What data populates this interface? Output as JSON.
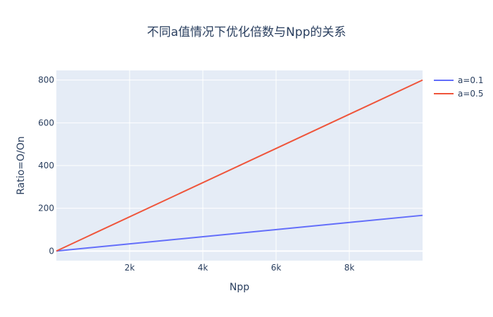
{
  "chart_data": {
    "type": "line",
    "title": "不同a值情况下优化倍数与Npp的关系",
    "xlabel": "Npp",
    "ylabel": "Ratio=O/On",
    "xlim": [
      0,
      10000
    ],
    "ylim": [
      -45,
      845
    ],
    "x_ticks": [
      {
        "value": 2000,
        "label": "2k"
      },
      {
        "value": 4000,
        "label": "4k"
      },
      {
        "value": 6000,
        "label": "6k"
      },
      {
        "value": 8000,
        "label": "8k"
      }
    ],
    "y_ticks": [
      {
        "value": 0,
        "label": "0"
      },
      {
        "value": 200,
        "label": "200"
      },
      {
        "value": 400,
        "label": "400"
      },
      {
        "value": 600,
        "label": "600"
      },
      {
        "value": 800,
        "label": "800"
      }
    ],
    "x": [
      0,
      10000
    ],
    "series": [
      {
        "name": "a=0.1",
        "color": "#636efa",
        "values": [
          0,
          167
        ]
      },
      {
        "name": "a=0.5",
        "color": "#ef553b",
        "values": [
          0,
          800
        ]
      }
    ],
    "legend_position": "top-right",
    "grid": true,
    "plot_background": "#e5ecf6",
    "grid_color": "#ffffff"
  }
}
